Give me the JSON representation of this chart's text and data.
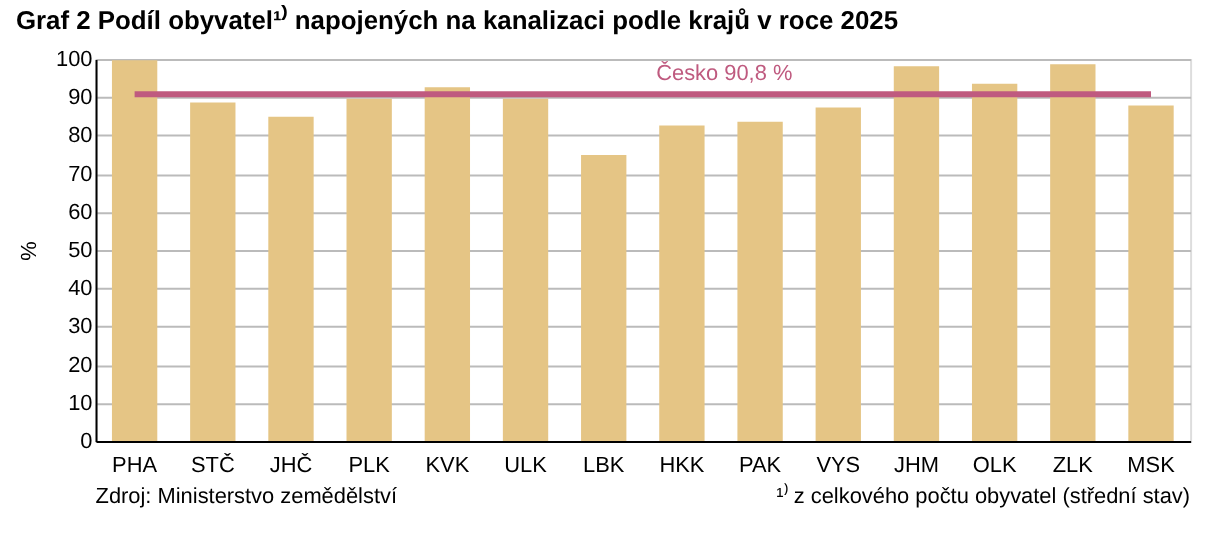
{
  "chart_data": {
    "type": "bar",
    "title": "Graf 2 Podíl obyvatel¹⁾ napojených na kanalizaci podle krajů v roce 2025",
    "ylabel": "%",
    "categories": [
      "PHA",
      "STČ",
      "JHČ",
      "PLK",
      "KVK",
      "ULK",
      "LBK",
      "HKK",
      "PAK",
      "VYS",
      "JHM",
      "OLK",
      "ZLK",
      "MSK"
    ],
    "series": [
      {
        "color": "#e5c585",
        "values": [
          99.7,
          88.6,
          84.9,
          89.6,
          92.6,
          89.6,
          74.9,
          82.6,
          83.6,
          87.3,
          98.1,
          93.5,
          98.6,
          87.8
        ]
      }
    ],
    "ylim": [
      0,
      100
    ],
    "yticks": [
      0,
      10,
      20,
      30,
      40,
      50,
      60,
      70,
      80,
      90,
      100
    ],
    "grid": "y",
    "ref_lines": [
      {
        "axis": "y",
        "value": 90.8,
        "label": "Česko 90,8 %",
        "color": "#bf5a7f"
      }
    ],
    "annotations": [
      "Zdroj: Ministerstvo zemědělství",
      "¹⁾ z celkového počtu obyvatel (střední stav)"
    ]
  }
}
